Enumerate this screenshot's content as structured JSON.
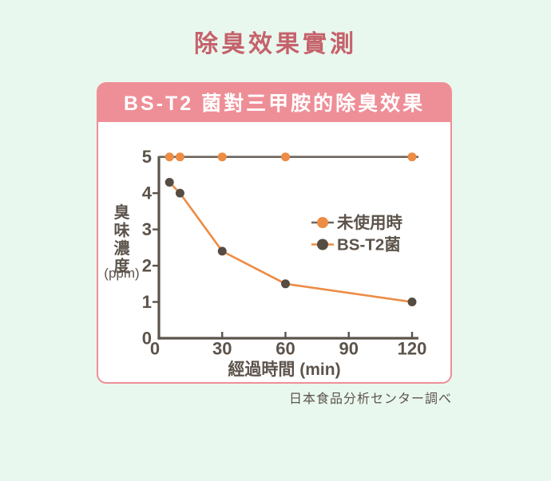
{
  "page": {
    "title": "除臭效果實測",
    "source_note": "日本食品分析センター調べ",
    "background_color": "#e9f8ee",
    "title_color": "#c5626b"
  },
  "card": {
    "header_label": "BS-T2 菌對三甲胺的除臭效果",
    "header_bg_color": "#ee8f97",
    "border_color": "#ee8f97",
    "body_bg_color": "#ffffff"
  },
  "chart_data": {
    "type": "line",
    "title": "BS-T2 菌對三甲胺的除臭效果",
    "xlabel": "經過時間 (min)",
    "ylabel": "臭味濃度",
    "ylabel_unit": "(ppm)",
    "xlim": [
      0,
      120
    ],
    "ylim": [
      0,
      5
    ],
    "xticks": [
      0,
      30,
      60,
      90,
      120
    ],
    "yticks": [
      0,
      1,
      2,
      3,
      4,
      5
    ],
    "grid": false,
    "legend_position": "center-right-inside",
    "axis_color": "#5c534b",
    "text_color": "#5c534b",
    "series": [
      {
        "name": "未使用時",
        "x": [
          0,
          5,
          10,
          30,
          60,
          120
        ],
        "y": [
          5,
          5,
          5,
          5,
          5,
          5
        ],
        "markers_at": [
          5,
          10,
          30,
          60,
          120
        ],
        "line_color": "#6e655d",
        "marker_color": "#ec8c45",
        "extend_line_to_edge": true
      },
      {
        "name": "BS-T2菌",
        "x": [
          5,
          10,
          30,
          60,
          120
        ],
        "y": [
          4.3,
          4.0,
          2.4,
          1.5,
          1.0
        ],
        "markers_at": [
          5,
          10,
          30,
          60,
          120
        ],
        "line_color": "#ec8c45",
        "marker_color": "#554c44",
        "extend_line_to_edge": false
      }
    ]
  }
}
